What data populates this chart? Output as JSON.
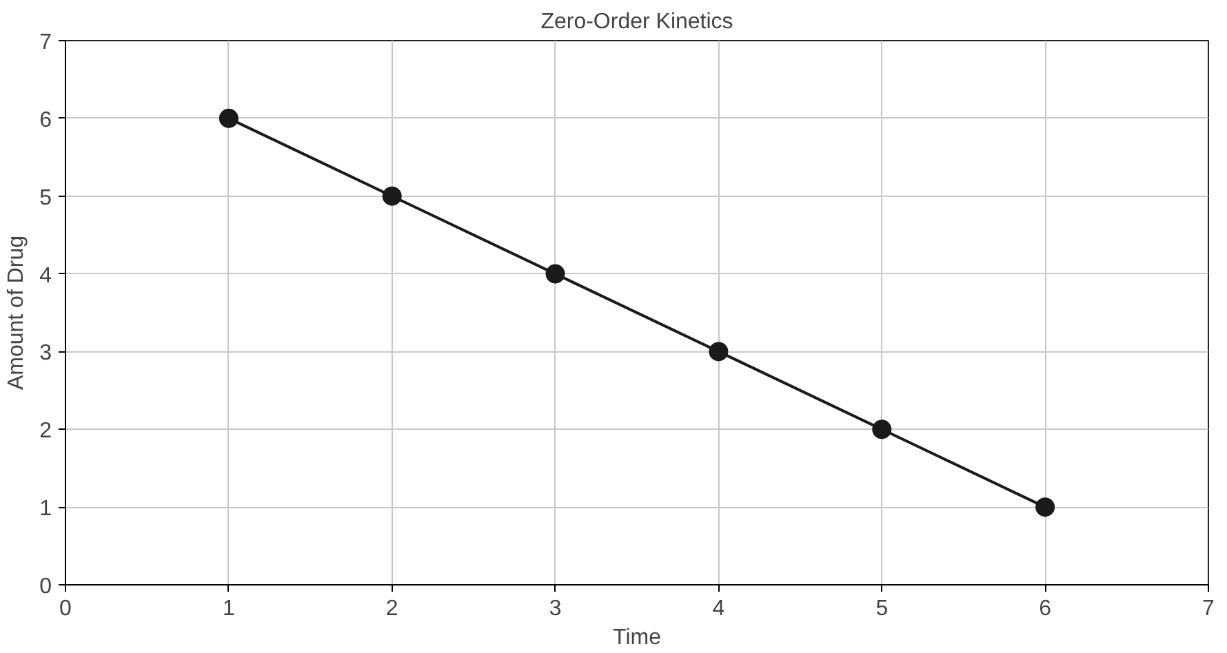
{
  "chart_data": {
    "type": "line",
    "title": "Zero-Order Kinetics",
    "xlabel": "Time",
    "ylabel": "Amount of Drug",
    "x": [
      1,
      2,
      3,
      4,
      5,
      6
    ],
    "series": [
      {
        "color": "#1a1a1a",
        "values": [
          6,
          5,
          4,
          3,
          2,
          1
        ]
      }
    ],
    "xlim": [
      0,
      7
    ],
    "ylim": [
      0,
      7
    ],
    "xticks": [
      0,
      1,
      2,
      3,
      4,
      5,
      6,
      7
    ],
    "yticks": [
      0,
      1,
      2,
      3,
      4,
      5,
      6,
      7
    ],
    "grid": true,
    "marker": "circle",
    "line_style": "solid"
  }
}
